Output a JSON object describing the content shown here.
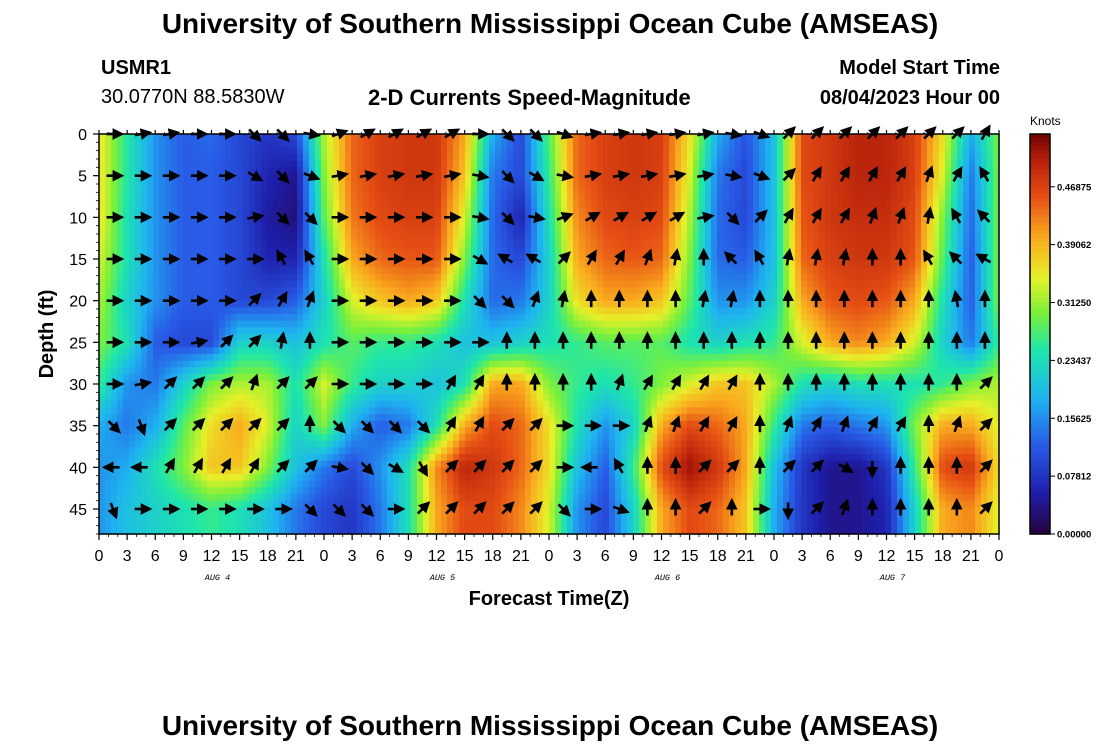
{
  "header": {
    "title": "University of Southern Mississippi Ocean Cube (AMSEAS)",
    "station_id": "USMR1",
    "station_coords": "30.0770N  88.5830W",
    "plot_title": "2-D Currents Speed-Magnitude",
    "model_start_label": "Model Start Time",
    "model_start_value": "08/04/2023 Hour 00"
  },
  "footer": {
    "title": "University of Southern Mississippi Ocean Cube (AMSEAS)"
  },
  "chart_data": {
    "type": "heatmap",
    "title": "2-D Currents Speed-Magnitude",
    "xlabel": "Forecast Time(Z)",
    "ylabel": "Depth (ft)",
    "x_range_hours": [
      0,
      96
    ],
    "y_range_ft": [
      0,
      48
    ],
    "x_tick_labels": [
      "0",
      "3",
      "6",
      "9",
      "12",
      "15",
      "18",
      "21",
      "0",
      "3",
      "6",
      "9",
      "12",
      "15",
      "18",
      "21",
      "0",
      "3",
      "6",
      "9",
      "12",
      "15",
      "18",
      "21",
      "0",
      "3",
      "6",
      "9",
      "12",
      "15",
      "18",
      "21",
      "0"
    ],
    "y_ticks": [
      0,
      5,
      10,
      15,
      20,
      25,
      30,
      35,
      40,
      45
    ],
    "y_tick_labels": [
      "0",
      "5",
      "10",
      "15",
      "20",
      "25",
      "30",
      "35",
      "40",
      "45"
    ],
    "day_labels": [
      {
        "label": "AUG 4",
        "hour": 12
      },
      {
        "label": "AUG 5",
        "hour": 36
      },
      {
        "label": "AUG 6",
        "hour": 60
      },
      {
        "label": "AUG 7",
        "hour": 84
      }
    ],
    "colorbar": {
      "unit": "Knots",
      "range": [
        0.0,
        0.54
      ],
      "ticks": [
        0.0,
        0.078125,
        0.15625,
        0.234375,
        0.3125,
        0.390625,
        0.46875
      ],
      "tick_labels": [
        "0.00000",
        "0.07812",
        "0.15625",
        "0.23437",
        "0.31250",
        "0.39062",
        "0.46875"
      ]
    },
    "speed_hours": [
      0,
      3,
      6,
      9,
      12,
      15,
      18,
      21,
      24,
      27,
      30,
      33,
      36,
      39,
      42,
      45,
      48,
      51,
      54,
      57,
      60,
      63,
      66,
      69,
      72,
      75,
      78,
      81,
      84,
      87,
      90,
      93,
      96
    ],
    "speed_depths_ft": [
      0,
      5,
      10,
      15,
      20,
      25,
      30,
      35,
      40,
      45,
      48
    ],
    "speed_knots": [
      [
        0.36,
        0.25,
        0.16,
        0.12,
        0.13,
        0.1,
        0.08,
        0.1,
        0.32,
        0.44,
        0.47,
        0.48,
        0.48,
        0.4,
        0.18,
        0.1,
        0.28,
        0.44,
        0.47,
        0.48,
        0.47,
        0.36,
        0.18,
        0.11,
        0.2,
        0.46,
        0.48,
        0.5,
        0.5,
        0.47,
        0.36,
        0.18,
        0.3
      ],
      [
        0.36,
        0.25,
        0.16,
        0.12,
        0.12,
        0.1,
        0.06,
        0.04,
        0.3,
        0.44,
        0.47,
        0.48,
        0.48,
        0.38,
        0.14,
        0.1,
        0.26,
        0.44,
        0.47,
        0.48,
        0.47,
        0.34,
        0.14,
        0.1,
        0.2,
        0.46,
        0.48,
        0.5,
        0.5,
        0.47,
        0.34,
        0.14,
        0.3
      ],
      [
        0.36,
        0.24,
        0.16,
        0.12,
        0.12,
        0.1,
        0.05,
        0.03,
        0.28,
        0.43,
        0.46,
        0.47,
        0.47,
        0.34,
        0.13,
        0.06,
        0.24,
        0.42,
        0.46,
        0.47,
        0.46,
        0.32,
        0.13,
        0.1,
        0.2,
        0.45,
        0.48,
        0.49,
        0.49,
        0.46,
        0.3,
        0.13,
        0.3
      ],
      [
        0.34,
        0.24,
        0.16,
        0.12,
        0.12,
        0.1,
        0.06,
        0.06,
        0.24,
        0.4,
        0.44,
        0.45,
        0.45,
        0.3,
        0.13,
        0.1,
        0.22,
        0.4,
        0.44,
        0.45,
        0.44,
        0.3,
        0.13,
        0.12,
        0.2,
        0.44,
        0.47,
        0.48,
        0.48,
        0.45,
        0.28,
        0.12,
        0.3
      ],
      [
        0.32,
        0.22,
        0.16,
        0.12,
        0.12,
        0.1,
        0.1,
        0.12,
        0.22,
        0.34,
        0.38,
        0.4,
        0.38,
        0.24,
        0.13,
        0.14,
        0.22,
        0.36,
        0.4,
        0.4,
        0.38,
        0.28,
        0.16,
        0.16,
        0.22,
        0.4,
        0.45,
        0.46,
        0.45,
        0.4,
        0.24,
        0.12,
        0.3
      ],
      [
        0.3,
        0.24,
        0.12,
        0.1,
        0.1,
        0.22,
        0.22,
        0.2,
        0.24,
        0.28,
        0.26,
        0.26,
        0.24,
        0.2,
        0.2,
        0.22,
        0.24,
        0.26,
        0.28,
        0.28,
        0.28,
        0.24,
        0.22,
        0.24,
        0.26,
        0.34,
        0.4,
        0.42,
        0.4,
        0.34,
        0.22,
        0.14,
        0.26
      ],
      [
        0.26,
        0.16,
        0.14,
        0.22,
        0.3,
        0.32,
        0.32,
        0.24,
        0.34,
        0.26,
        0.22,
        0.22,
        0.2,
        0.24,
        0.4,
        0.4,
        0.3,
        0.26,
        0.24,
        0.26,
        0.3,
        0.34,
        0.38,
        0.38,
        0.32,
        0.24,
        0.22,
        0.24,
        0.24,
        0.24,
        0.26,
        0.3,
        0.32
      ],
      [
        0.18,
        0.14,
        0.18,
        0.28,
        0.36,
        0.4,
        0.34,
        0.22,
        0.3,
        0.18,
        0.12,
        0.14,
        0.24,
        0.4,
        0.46,
        0.44,
        0.36,
        0.24,
        0.16,
        0.22,
        0.4,
        0.46,
        0.44,
        0.4,
        0.26,
        0.14,
        0.12,
        0.14,
        0.16,
        0.3,
        0.4,
        0.4,
        0.34
      ],
      [
        0.16,
        0.18,
        0.24,
        0.3,
        0.38,
        0.38,
        0.3,
        0.2,
        0.14,
        0.1,
        0.16,
        0.24,
        0.42,
        0.5,
        0.48,
        0.44,
        0.36,
        0.2,
        0.12,
        0.26,
        0.46,
        0.52,
        0.48,
        0.4,
        0.2,
        0.08,
        0.04,
        0.04,
        0.08,
        0.26,
        0.46,
        0.48,
        0.36
      ],
      [
        0.16,
        0.2,
        0.22,
        0.24,
        0.26,
        0.24,
        0.2,
        0.14,
        0.1,
        0.08,
        0.14,
        0.24,
        0.4,
        0.46,
        0.46,
        0.42,
        0.34,
        0.16,
        0.1,
        0.22,
        0.4,
        0.46,
        0.44,
        0.38,
        0.18,
        0.08,
        0.04,
        0.04,
        0.06,
        0.22,
        0.4,
        0.42,
        0.34
      ],
      [
        0.16,
        0.2,
        0.22,
        0.24,
        0.26,
        0.24,
        0.2,
        0.14,
        0.1,
        0.08,
        0.14,
        0.24,
        0.4,
        0.46,
        0.46,
        0.42,
        0.34,
        0.16,
        0.1,
        0.22,
        0.4,
        0.46,
        0.44,
        0.38,
        0.18,
        0.08,
        0.04,
        0.04,
        0.06,
        0.22,
        0.4,
        0.42,
        0.34
      ]
    ],
    "vector_hours": [
      1.5,
      4.5,
      7.5,
      10.5,
      13.5,
      16.5,
      19.5,
      22.5,
      25.5,
      28.5,
      31.5,
      34.5,
      37.5,
      40.5,
      43.5,
      46.5,
      49.5,
      52.5,
      55.5,
      58.5,
      61.5,
      64.5,
      67.5,
      70.5,
      73.5,
      76.5,
      79.5,
      82.5,
      85.5,
      88.5,
      91.5,
      94.5
    ],
    "vector_depths_ft": [
      0,
      5,
      10,
      15,
      20,
      25,
      30,
      35,
      40,
      45
    ],
    "vector_dir_deg": [
      [
        90,
        80,
        80,
        90,
        90,
        135,
        135,
        100,
        70,
        60,
        60,
        60,
        60,
        90,
        135,
        135,
        110,
        80,
        80,
        80,
        80,
        80,
        100,
        110,
        45,
        45,
        45,
        45,
        45,
        45,
        45,
        30
      ],
      [
        90,
        90,
        90,
        90,
        90,
        120,
        135,
        110,
        80,
        80,
        80,
        80,
        80,
        100,
        135,
        120,
        100,
        80,
        80,
        80,
        80,
        80,
        100,
        110,
        45,
        30,
        30,
        30,
        30,
        20,
        30,
        330
      ],
      [
        90,
        90,
        90,
        90,
        90,
        80,
        135,
        135,
        90,
        90,
        90,
        90,
        90,
        100,
        135,
        100,
        70,
        60,
        60,
        60,
        60,
        80,
        135,
        45,
        30,
        30,
        30,
        20,
        20,
        10,
        330,
        315
      ],
      [
        90,
        90,
        90,
        90,
        90,
        90,
        330,
        330,
        90,
        90,
        90,
        90,
        90,
        120,
        300,
        300,
        45,
        30,
        30,
        20,
        10,
        0,
        315,
        330,
        10,
        10,
        10,
        0,
        0,
        330,
        315,
        300
      ],
      [
        90,
        90,
        90,
        90,
        90,
        45,
        30,
        20,
        90,
        90,
        90,
        90,
        90,
        135,
        135,
        20,
        10,
        0,
        0,
        0,
        0,
        10,
        10,
        0,
        0,
        0,
        0,
        0,
        0,
        0,
        350,
        0
      ],
      [
        90,
        90,
        90,
        80,
        45,
        45,
        10,
        0,
        90,
        90,
        90,
        90,
        90,
        90,
        0,
        0,
        0,
        0,
        0,
        0,
        0,
        0,
        0,
        0,
        0,
        0,
        0,
        0,
        0,
        0,
        0,
        0
      ],
      [
        90,
        80,
        45,
        45,
        45,
        20,
        45,
        45,
        90,
        90,
        90,
        90,
        30,
        30,
        0,
        0,
        0,
        0,
        20,
        30,
        30,
        30,
        30,
        0,
        0,
        0,
        0,
        0,
        0,
        0,
        0,
        45
      ],
      [
        135,
        160,
        45,
        45,
        45,
        45,
        45,
        0,
        135,
        135,
        135,
        135,
        30,
        30,
        45,
        45,
        90,
        90,
        90,
        20,
        20,
        30,
        30,
        0,
        20,
        30,
        20,
        30,
        30,
        0,
        20,
        45
      ],
      [
        270,
        270,
        30,
        30,
        30,
        30,
        45,
        45,
        100,
        135,
        120,
        150,
        45,
        45,
        45,
        45,
        90,
        270,
        330,
        0,
        0,
        45,
        45,
        0,
        45,
        45,
        120,
        180,
        0,
        0,
        0,
        45
      ],
      [
        160,
        90,
        90,
        90,
        90,
        90,
        90,
        135,
        135,
        135,
        90,
        45,
        45,
        45,
        45,
        45,
        135,
        90,
        110,
        0,
        0,
        45,
        0,
        90,
        180,
        45,
        20,
        0,
        0,
        0,
        0,
        45
      ]
    ]
  }
}
